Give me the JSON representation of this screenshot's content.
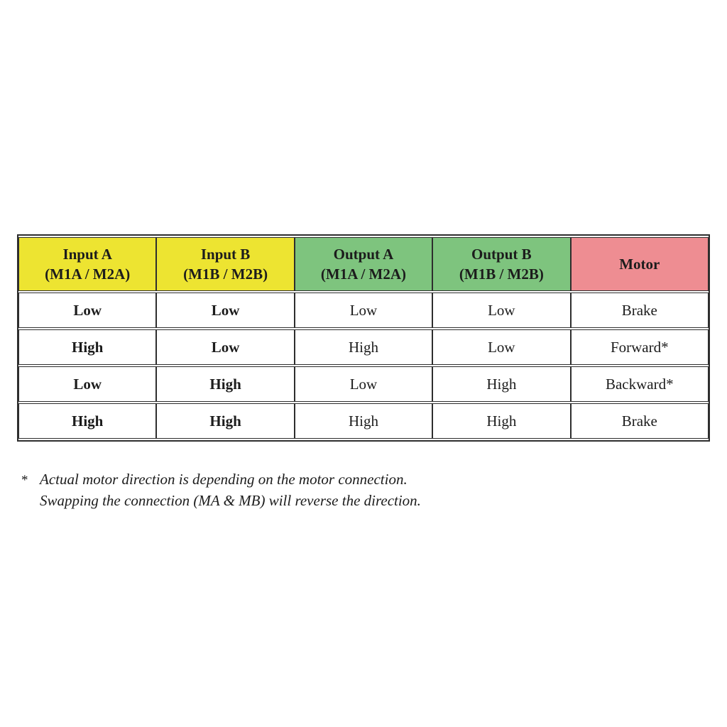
{
  "colors": {
    "input_header_bg": "#ede431",
    "output_header_bg": "#7ec47e",
    "motor_header_bg": "#ee8d92",
    "border": "#2e2e2e",
    "text": "#1c1c1c"
  },
  "table": {
    "headers": [
      {
        "line1": "Input A",
        "line2": "(M1A / M2A)",
        "group": "input"
      },
      {
        "line1": "Input B",
        "line2": "(M1B / M2B)",
        "group": "input"
      },
      {
        "line1": "Output A",
        "line2": "(M1A / M2A)",
        "group": "output"
      },
      {
        "line1": "Output B",
        "line2": "(M1B / M2B)",
        "group": "output"
      },
      {
        "line1": "Motor",
        "line2": "",
        "group": "motor"
      }
    ],
    "rows": [
      [
        "Low",
        "Low",
        "Low",
        "Low",
        "Brake"
      ],
      [
        "High",
        "Low",
        "High",
        "Low",
        "Forward*"
      ],
      [
        "Low",
        "High",
        "Low",
        "High",
        "Backward*"
      ],
      [
        "High",
        "High",
        "High",
        "High",
        "Brake"
      ]
    ]
  },
  "footnote": {
    "marker": "*",
    "line1": "Actual motor direction is depending on the motor connection.",
    "line2": "Swapping the connection (MA & MB) will reverse the direction."
  }
}
